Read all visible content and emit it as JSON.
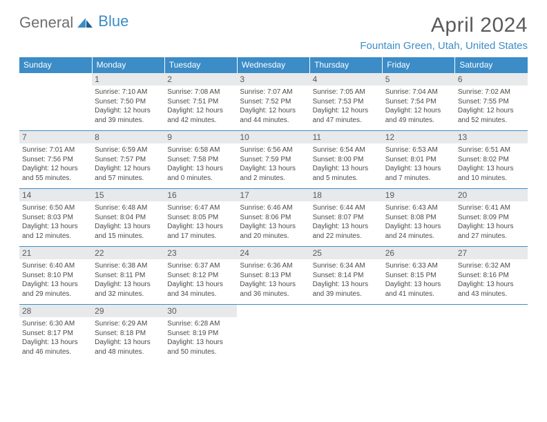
{
  "brand": {
    "part1": "General",
    "part2": "Blue"
  },
  "title": "April 2024",
  "location": "Fountain Green, Utah, United States",
  "colors": {
    "accent": "#3b8cc7",
    "header_text": "#ffffff",
    "daynum_bg": "#e8e9ea",
    "text": "#4a4a4a",
    "title_color": "#595a5c"
  },
  "day_headers": [
    "Sunday",
    "Monday",
    "Tuesday",
    "Wednesday",
    "Thursday",
    "Friday",
    "Saturday"
  ],
  "weeks": [
    [
      null,
      {
        "n": "1",
        "sr": "Sunrise: 7:10 AM",
        "ss": "Sunset: 7:50 PM",
        "d1": "Daylight: 12 hours",
        "d2": "and 39 minutes."
      },
      {
        "n": "2",
        "sr": "Sunrise: 7:08 AM",
        "ss": "Sunset: 7:51 PM",
        "d1": "Daylight: 12 hours",
        "d2": "and 42 minutes."
      },
      {
        "n": "3",
        "sr": "Sunrise: 7:07 AM",
        "ss": "Sunset: 7:52 PM",
        "d1": "Daylight: 12 hours",
        "d2": "and 44 minutes."
      },
      {
        "n": "4",
        "sr": "Sunrise: 7:05 AM",
        "ss": "Sunset: 7:53 PM",
        "d1": "Daylight: 12 hours",
        "d2": "and 47 minutes."
      },
      {
        "n": "5",
        "sr": "Sunrise: 7:04 AM",
        "ss": "Sunset: 7:54 PM",
        "d1": "Daylight: 12 hours",
        "d2": "and 49 minutes."
      },
      {
        "n": "6",
        "sr": "Sunrise: 7:02 AM",
        "ss": "Sunset: 7:55 PM",
        "d1": "Daylight: 12 hours",
        "d2": "and 52 minutes."
      }
    ],
    [
      {
        "n": "7",
        "sr": "Sunrise: 7:01 AM",
        "ss": "Sunset: 7:56 PM",
        "d1": "Daylight: 12 hours",
        "d2": "and 55 minutes."
      },
      {
        "n": "8",
        "sr": "Sunrise: 6:59 AM",
        "ss": "Sunset: 7:57 PM",
        "d1": "Daylight: 12 hours",
        "d2": "and 57 minutes."
      },
      {
        "n": "9",
        "sr": "Sunrise: 6:58 AM",
        "ss": "Sunset: 7:58 PM",
        "d1": "Daylight: 13 hours",
        "d2": "and 0 minutes."
      },
      {
        "n": "10",
        "sr": "Sunrise: 6:56 AM",
        "ss": "Sunset: 7:59 PM",
        "d1": "Daylight: 13 hours",
        "d2": "and 2 minutes."
      },
      {
        "n": "11",
        "sr": "Sunrise: 6:54 AM",
        "ss": "Sunset: 8:00 PM",
        "d1": "Daylight: 13 hours",
        "d2": "and 5 minutes."
      },
      {
        "n": "12",
        "sr": "Sunrise: 6:53 AM",
        "ss": "Sunset: 8:01 PM",
        "d1": "Daylight: 13 hours",
        "d2": "and 7 minutes."
      },
      {
        "n": "13",
        "sr": "Sunrise: 6:51 AM",
        "ss": "Sunset: 8:02 PM",
        "d1": "Daylight: 13 hours",
        "d2": "and 10 minutes."
      }
    ],
    [
      {
        "n": "14",
        "sr": "Sunrise: 6:50 AM",
        "ss": "Sunset: 8:03 PM",
        "d1": "Daylight: 13 hours",
        "d2": "and 12 minutes."
      },
      {
        "n": "15",
        "sr": "Sunrise: 6:48 AM",
        "ss": "Sunset: 8:04 PM",
        "d1": "Daylight: 13 hours",
        "d2": "and 15 minutes."
      },
      {
        "n": "16",
        "sr": "Sunrise: 6:47 AM",
        "ss": "Sunset: 8:05 PM",
        "d1": "Daylight: 13 hours",
        "d2": "and 17 minutes."
      },
      {
        "n": "17",
        "sr": "Sunrise: 6:46 AM",
        "ss": "Sunset: 8:06 PM",
        "d1": "Daylight: 13 hours",
        "d2": "and 20 minutes."
      },
      {
        "n": "18",
        "sr": "Sunrise: 6:44 AM",
        "ss": "Sunset: 8:07 PM",
        "d1": "Daylight: 13 hours",
        "d2": "and 22 minutes."
      },
      {
        "n": "19",
        "sr": "Sunrise: 6:43 AM",
        "ss": "Sunset: 8:08 PM",
        "d1": "Daylight: 13 hours",
        "d2": "and 24 minutes."
      },
      {
        "n": "20",
        "sr": "Sunrise: 6:41 AM",
        "ss": "Sunset: 8:09 PM",
        "d1": "Daylight: 13 hours",
        "d2": "and 27 minutes."
      }
    ],
    [
      {
        "n": "21",
        "sr": "Sunrise: 6:40 AM",
        "ss": "Sunset: 8:10 PM",
        "d1": "Daylight: 13 hours",
        "d2": "and 29 minutes."
      },
      {
        "n": "22",
        "sr": "Sunrise: 6:38 AM",
        "ss": "Sunset: 8:11 PM",
        "d1": "Daylight: 13 hours",
        "d2": "and 32 minutes."
      },
      {
        "n": "23",
        "sr": "Sunrise: 6:37 AM",
        "ss": "Sunset: 8:12 PM",
        "d1": "Daylight: 13 hours",
        "d2": "and 34 minutes."
      },
      {
        "n": "24",
        "sr": "Sunrise: 6:36 AM",
        "ss": "Sunset: 8:13 PM",
        "d1": "Daylight: 13 hours",
        "d2": "and 36 minutes."
      },
      {
        "n": "25",
        "sr": "Sunrise: 6:34 AM",
        "ss": "Sunset: 8:14 PM",
        "d1": "Daylight: 13 hours",
        "d2": "and 39 minutes."
      },
      {
        "n": "26",
        "sr": "Sunrise: 6:33 AM",
        "ss": "Sunset: 8:15 PM",
        "d1": "Daylight: 13 hours",
        "d2": "and 41 minutes."
      },
      {
        "n": "27",
        "sr": "Sunrise: 6:32 AM",
        "ss": "Sunset: 8:16 PM",
        "d1": "Daylight: 13 hours",
        "d2": "and 43 minutes."
      }
    ],
    [
      {
        "n": "28",
        "sr": "Sunrise: 6:30 AM",
        "ss": "Sunset: 8:17 PM",
        "d1": "Daylight: 13 hours",
        "d2": "and 46 minutes."
      },
      {
        "n": "29",
        "sr": "Sunrise: 6:29 AM",
        "ss": "Sunset: 8:18 PM",
        "d1": "Daylight: 13 hours",
        "d2": "and 48 minutes."
      },
      {
        "n": "30",
        "sr": "Sunrise: 6:28 AM",
        "ss": "Sunset: 8:19 PM",
        "d1": "Daylight: 13 hours",
        "d2": "and 50 minutes."
      },
      null,
      null,
      null,
      null
    ]
  ]
}
